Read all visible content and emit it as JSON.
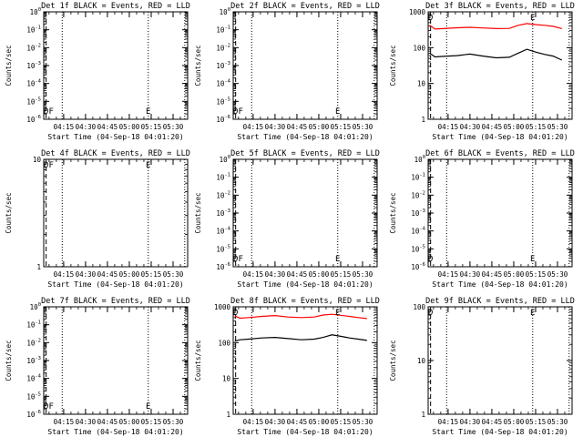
{
  "chart_data": [
    {
      "type": "line",
      "title": "Det 1f BLACK = Events, RED = LLD",
      "ylabel": "Counts/sec",
      "xlabel": "Start Time (04-Sep-18 04:01:20)",
      "x_ticks": [
        "04:15",
        "04:30",
        "04:45",
        "05:00",
        "05:15",
        "05:30"
      ],
      "y_ticks": [
        "10^0",
        "10^-1",
        "10^-2",
        "10^-3",
        "10^-4",
        "10^-5",
        "10^-6"
      ],
      "markers": [
        {
          "label": "D",
          "x": "04:03"
        },
        {
          "label": "F",
          "x": "04:04"
        },
        {
          "label": "E",
          "x": "05:13"
        }
      ],
      "series": []
    },
    {
      "type": "line",
      "title": "Det 2f BLACK = Events, RED = LLD",
      "ylabel": "Counts/sec",
      "xlabel": "Start Time (04-Sep-18 04:01:20)",
      "x_ticks": [
        "04:15",
        "04:30",
        "04:45",
        "05:00",
        "05:15",
        "05:30"
      ],
      "y_ticks": [
        "10^0",
        "10^-1",
        "10^-2",
        "10^-3",
        "10^-4",
        "10^-5",
        "10^-6"
      ],
      "markers": [
        {
          "label": "D",
          "x": "04:03"
        },
        {
          "label": "F",
          "x": "04:04"
        },
        {
          "label": "E",
          "x": "05:13"
        }
      ],
      "series": []
    },
    {
      "type": "line",
      "title": "Det 3f BLACK = Events, RED = LLD",
      "ylabel": "Counts/sec",
      "xlabel": "Start Time (04-Sep-18 04:01:20)",
      "x_ticks": [
        "04:15",
        "04:30",
        "04:45",
        "05:00",
        "05:15",
        "05:30"
      ],
      "y_ticks": [
        "1",
        "10",
        "100",
        "1000"
      ],
      "markers": [
        {
          "label": "D",
          "x": "04:03"
        },
        {
          "label": "E",
          "x": "05:13"
        }
      ],
      "series": [
        {
          "color": "#ff0000",
          "x": [
            4.04,
            4.1,
            4.2,
            4.35,
            4.5,
            4.65,
            4.8,
            4.95,
            5.05,
            5.15,
            5.25,
            5.35,
            5.45,
            5.55
          ],
          "y": [
            420,
            330,
            340,
            360,
            370,
            355,
            340,
            345,
            420,
            470,
            440,
            420,
            395,
            340
          ]
        },
        {
          "color": "#000000",
          "x": [
            4.04,
            4.1,
            4.2,
            4.35,
            4.5,
            4.65,
            4.8,
            4.95,
            5.05,
            5.15,
            5.25,
            5.35,
            5.45,
            5.55
          ],
          "y": [
            70,
            55,
            57,
            60,
            66,
            58,
            52,
            54,
            70,
            90,
            75,
            65,
            58,
            45
          ]
        }
      ]
    },
    {
      "type": "line",
      "title": "Det 4f BLACK = Events, RED = LLD",
      "ylabel": "Counts/sec",
      "xlabel": "Start Time (04-Sep-18 04:01:20)",
      "x_ticks": [
        "04:15",
        "04:30",
        "04:45",
        "05:00",
        "05:15",
        "05:30"
      ],
      "y_ticks": [
        "1",
        "10"
      ],
      "markers": [
        {
          "label": "D",
          "x": "04:03"
        },
        {
          "label": "F",
          "x": "04:04"
        },
        {
          "label": "E",
          "x": "05:13"
        }
      ],
      "series": []
    },
    {
      "type": "line",
      "title": "Det 5f BLACK = Events, RED = LLD",
      "ylabel": "Counts/sec",
      "xlabel": "Start Time (04-Sep-18 04:01:20)",
      "x_ticks": [
        "04:15",
        "04:30",
        "04:45",
        "05:00",
        "05:15",
        "05:30"
      ],
      "y_ticks": [
        "10^0",
        "10^-1",
        "10^-2",
        "10^-3",
        "10^-4",
        "10^-5",
        "10^-6"
      ],
      "markers": [
        {
          "label": "D",
          "x": "04:03"
        },
        {
          "label": "F",
          "x": "04:04"
        },
        {
          "label": "E",
          "x": "05:13"
        }
      ],
      "series": []
    },
    {
      "type": "line",
      "title": "Det 6f BLACK = Events, RED = LLD",
      "ylabel": "Counts/sec",
      "xlabel": "Start Time (04-Sep-18 04:01:20)",
      "x_ticks": [
        "04:15",
        "04:30",
        "04:45",
        "05:00",
        "05:15",
        "05:30"
      ],
      "y_ticks": [
        "10^0",
        "10^-1",
        "10^-2",
        "10^-3",
        "10^-4",
        "10^-5",
        "10^-6"
      ],
      "markers": [
        {
          "label": "D",
          "x": "04:03"
        },
        {
          "label": "E",
          "x": "05:13"
        }
      ],
      "series": []
    },
    {
      "type": "line",
      "title": "Det 7f BLACK = Events, RED = LLD",
      "ylabel": "Counts/sec",
      "xlabel": "Start Time (04-Sep-18 04:01:20)",
      "x_ticks": [
        "04:15",
        "04:30",
        "04:45",
        "05:00",
        "05:15",
        "05:30"
      ],
      "y_ticks": [
        "10^0",
        "10^-1",
        "10^-2",
        "10^-3",
        "10^-4",
        "10^-5",
        "10^-6"
      ],
      "markers": [
        {
          "label": "D",
          "x": "04:03"
        },
        {
          "label": "F",
          "x": "04:04"
        },
        {
          "label": "E",
          "x": "05:13"
        }
      ],
      "series": []
    },
    {
      "type": "line",
      "title": "Det 8f BLACK = Events, RED = LLD",
      "ylabel": "Counts/sec",
      "xlabel": "Start Time (04-Sep-18 04:01:20)",
      "x_ticks": [
        "04:15",
        "04:30",
        "04:45",
        "05:00",
        "05:15",
        "05:30"
      ],
      "y_ticks": [
        "1",
        "10",
        "100",
        "1000"
      ],
      "markers": [
        {
          "label": "D",
          "x": "04:03"
        },
        {
          "label": "E",
          "x": "05:13"
        }
      ],
      "series": [
        {
          "color": "#ff0000",
          "x": [
            4.04,
            4.1,
            4.2,
            4.35,
            4.5,
            4.65,
            4.8,
            4.95,
            5.05,
            5.15,
            5.25,
            5.35,
            5.45,
            5.55
          ],
          "y": [
            560,
            480,
            500,
            540,
            570,
            520,
            500,
            520,
            590,
            620,
            580,
            540,
            500,
            470
          ]
        },
        {
          "color": "#000000",
          "x": [
            4.04,
            4.1,
            4.2,
            4.35,
            4.5,
            4.65,
            4.8,
            4.95,
            5.05,
            5.15,
            5.25,
            5.35,
            5.45,
            5.55
          ],
          "y": [
            110,
            120,
            125,
            135,
            140,
            130,
            120,
            125,
            140,
            165,
            150,
            135,
            125,
            115
          ]
        }
      ]
    },
    {
      "type": "line",
      "title": "Det 9f BLACK = Events, RED = LLD",
      "ylabel": "Counts/sec",
      "xlabel": "Start Time (04-Sep-18 04:01:20)",
      "x_ticks": [
        "04:15",
        "04:30",
        "04:45",
        "05:00",
        "05:15",
        "05:30"
      ],
      "y_ticks": [
        "1",
        "10",
        "100"
      ],
      "markers": [
        {
          "label": "D",
          "x": "04:03"
        },
        {
          "label": "E",
          "x": "05:13"
        }
      ],
      "series": []
    }
  ]
}
